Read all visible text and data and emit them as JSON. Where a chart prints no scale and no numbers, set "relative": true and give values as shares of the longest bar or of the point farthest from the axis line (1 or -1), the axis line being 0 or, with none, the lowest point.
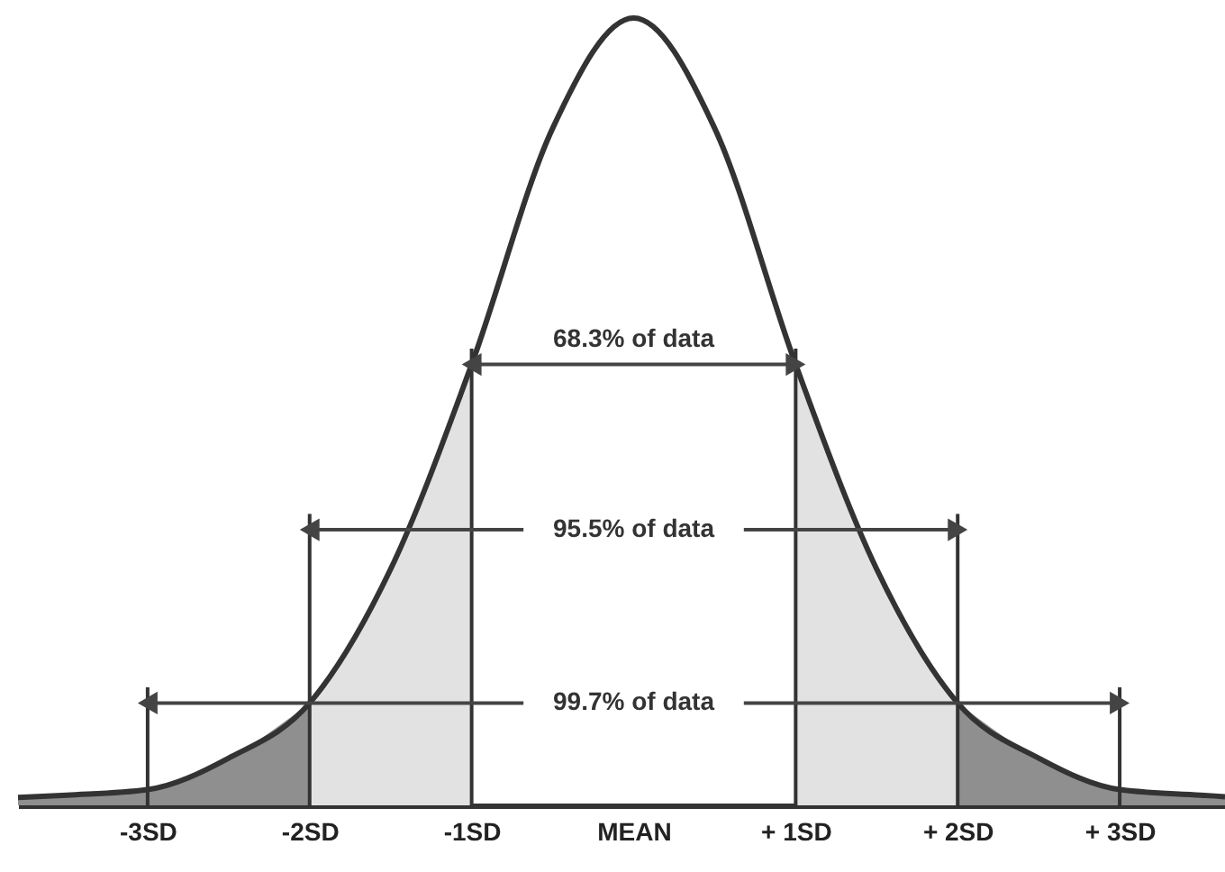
{
  "chart_data": {
    "type": "line",
    "relative": true,
    "xlim": [
      -3.8,
      3.65
    ],
    "xticks": [
      {
        "value": -3,
        "label": "-3SD"
      },
      {
        "value": -2,
        "label": "-2SD"
      },
      {
        "value": -1,
        "label": "-1SD"
      },
      {
        "value": 0,
        "label": "MEAN"
      },
      {
        "value": 1,
        "label": "+ 1SD"
      },
      {
        "value": 2,
        "label": "+ 2SD"
      },
      {
        "value": 3,
        "label": "+ 3SD"
      }
    ],
    "series": [
      {
        "type": "area",
        "color": "#8f8f8f",
        "x": [
          -3.8,
          -3.5,
          -3,
          -2.5,
          -2,
          0,
          2,
          2.5,
          3,
          3.5,
          3.65
        ],
        "values": [
          0.01,
          0.013,
          0.02,
          0.06,
          0.13,
          null,
          0.13,
          0.06,
          0.02,
          0.013,
          0.011
        ]
      },
      {
        "type": "area",
        "color": "#e2e2e2",
        "x": [
          -2,
          -1.5,
          -1,
          0,
          1,
          1.5,
          2
        ],
        "values": [
          0.13,
          0.3,
          0.56,
          null,
          0.56,
          0.3,
          0.13
        ]
      },
      {
        "color": "#333333",
        "x": [
          -3.8,
          -3.5,
          -3,
          -2.5,
          -2,
          -1.5,
          -1,
          -0.5,
          0,
          0.5,
          1,
          1.5,
          2,
          2.5,
          3,
          3.5,
          3.65
        ],
        "values": [
          0.01,
          0.013,
          0.02,
          0.06,
          0.13,
          0.3,
          0.56,
          0.86,
          1,
          0.86,
          0.56,
          0.3,
          0.13,
          0.06,
          0.02,
          0.013,
          0.011
        ]
      }
    ],
    "ref_lines": [
      {
        "axis": "x",
        "value": -1,
        "color": "#333333"
      },
      {
        "axis": "x",
        "value": 1,
        "color": "#333333"
      },
      {
        "axis": "x",
        "value": -2,
        "color": "#333333"
      },
      {
        "axis": "x",
        "value": 2,
        "color": "#333333"
      },
      {
        "axis": "x",
        "value": -3,
        "color": "#333333"
      },
      {
        "axis": "x",
        "value": 3,
        "color": "#333333"
      }
    ],
    "annotations": [
      "68.3% of data",
      "95.5% of data",
      "99.7% of data"
    ]
  }
}
